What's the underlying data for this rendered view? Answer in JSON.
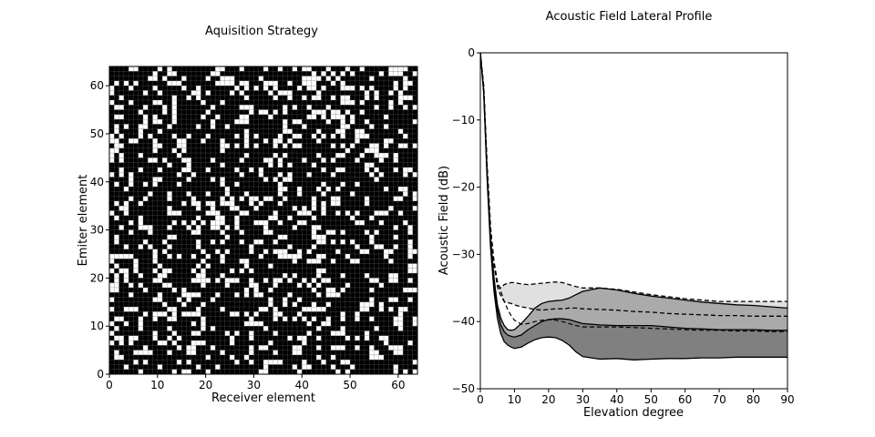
{
  "chart_data": [
    {
      "type": "heatmap",
      "title": "Aquisition Strategy",
      "xlabel": "Receiver element",
      "ylabel": "Emiter element",
      "xlim": [
        0,
        64
      ],
      "ylim": [
        0,
        64
      ],
      "xticks": [
        "0",
        "10",
        "20",
        "30",
        "40",
        "50",
        "60"
      ],
      "yticks": [
        "0",
        "10",
        "20",
        "30",
        "40",
        "50",
        "60"
      ],
      "grid_size": [
        64,
        64
      ],
      "colors": {
        "selected": "#ffffff",
        "unselected": "#000000",
        "cell_border": "#777777"
      },
      "selected_fraction": 0.25,
      "pattern": "random binary mask"
    },
    {
      "type": "area",
      "title": "Acoustic Field Lateral Profile",
      "xlabel": "Elevation degree",
      "ylabel": "Acoustic Field (dB)",
      "xlim": [
        0,
        90
      ],
      "ylim": [
        -50,
        0
      ],
      "xticks": [
        "0",
        "10",
        "20",
        "30",
        "40",
        "50",
        "60",
        "70",
        "80",
        "90"
      ],
      "yticks": [
        "0",
        "−10",
        "−20",
        "−30",
        "−40",
        "−50"
      ],
      "x": [
        0,
        1,
        2,
        3,
        4,
        5,
        6,
        7,
        8,
        9,
        10,
        12,
        14,
        16,
        18,
        20,
        22,
        24,
        26,
        28,
        30,
        35,
        40,
        45,
        50,
        55,
        60,
        65,
        70,
        75,
        80,
        85,
        90
      ],
      "bands": [
        {
          "fill": "#e0e0e0",
          "edge": "dashed",
          "upper": [
            0,
            -5,
            -17,
            -26,
            -31.5,
            -34.5,
            -35,
            -34.5,
            -34.3,
            -34.2,
            -34.2,
            -34.4,
            -34.5,
            -34.4,
            -34.3,
            -34.2,
            -34.1,
            -34.2,
            -34.5,
            -34.8,
            -35,
            -35,
            -35.2,
            -35.6,
            -36,
            -36.3,
            -36.6,
            -36.8,
            -37,
            -37,
            -37,
            -37,
            -37
          ],
          "lower": [
            0,
            -5,
            -17,
            -26,
            -31.5,
            -34.8,
            -36.2,
            -37,
            -37.2,
            -37.3,
            -37.5,
            -37.8,
            -38,
            -38.2,
            -38.3,
            -38.2,
            -38.1,
            -38.1,
            -38,
            -38,
            -38.1,
            -38.2,
            -38.3,
            -38.5,
            -38.6,
            -38.8,
            -38.9,
            -39,
            -39.1,
            -39.1,
            -39.2,
            -39.2,
            -39.2
          ]
        },
        {
          "fill": "#aaaaaa",
          "edge": "solid",
          "upper": [
            0,
            -5.5,
            -18,
            -27.5,
            -33.5,
            -37.5,
            -39.5,
            -40.6,
            -41.2,
            -41.3,
            -41.2,
            -40.3,
            -39.2,
            -38,
            -37.3,
            -37,
            -36.9,
            -36.8,
            -36.5,
            -36,
            -35.5,
            -35,
            -35.3,
            -35.8,
            -36.2,
            -36.5,
            -36.8,
            -37.1,
            -37.3,
            -37.5,
            -37.6,
            -37.8,
            -38
          ]
        },
        {
          "fill": "#808080",
          "edge": "solid",
          "upper": [
            0,
            -5.8,
            -18.5,
            -28,
            -34.5,
            -38.2,
            -40.5,
            -41.5,
            -42,
            -42.2,
            -42.3,
            -42,
            -41.2,
            -40.6,
            -40,
            -39.7,
            -39.6,
            -39.6,
            -39.7,
            -40,
            -40.3,
            -40.5,
            -40.6,
            -40.6,
            -40.6,
            -40.8,
            -41,
            -41.1,
            -41.2,
            -41.2,
            -41.2,
            -41.3,
            -41.3
          ],
          "lower": [
            0,
            -6,
            -19,
            -29,
            -35.5,
            -39.5,
            -41.8,
            -43,
            -43.5,
            -43.8,
            -44,
            -43.8,
            -43.2,
            -42.7,
            -42.4,
            -42.3,
            -42.4,
            -42.8,
            -43.5,
            -44.5,
            -45.2,
            -45.6,
            -45.5,
            -45.7,
            -45.6,
            -45.5,
            -45.5,
            -45.4,
            -45.4,
            -45.3,
            -45.3,
            -45.3,
            -45.3
          ]
        }
      ],
      "dashed_line": [
        0,
        -5,
        -17,
        -26,
        -31,
        -34,
        -35.5,
        -37,
        -38.2,
        -39.1,
        -39.8,
        -40.4,
        -40.3,
        -40,
        -39.8,
        -39.7,
        -39.8,
        -40,
        -40.3,
        -40.6,
        -40.8,
        -40.8,
        -40.8,
        -40.9,
        -41,
        -41.1,
        -41.2,
        -41.3,
        -41.3,
        -41.4,
        -41.4,
        -41.5,
        -41.5
      ]
    }
  ]
}
